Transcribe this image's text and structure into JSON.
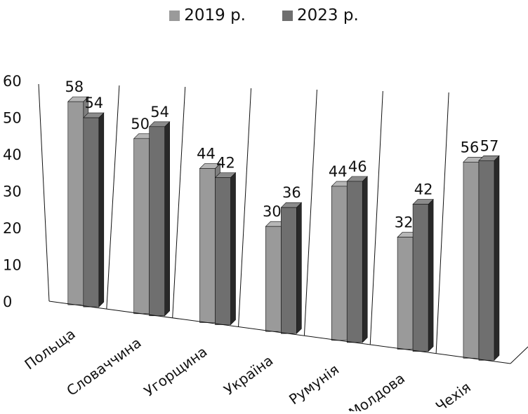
{
  "chart_data": {
    "type": "bar",
    "title": "",
    "subtitle": "",
    "xlabel": "",
    "ylabel": "",
    "categories": [
      "Польща",
      "Словаччина",
      "Угорщина",
      "Україна",
      "Румунія",
      "Молдова",
      "Чехія"
    ],
    "series": [
      {
        "name": "2019 р.",
        "values": [
          58,
          50,
          44,
          30,
          44,
          32,
          56
        ],
        "color": "#9a9a9a"
      },
      {
        "name": "2023 р.",
        "values": [
          54,
          54,
          42,
          36,
          46,
          42,
          57
        ],
        "color": "#6f6f6f"
      }
    ],
    "ylim": [
      0,
      60
    ],
    "yticks": [
      "0",
      "10",
      "20",
      "30",
      "40",
      "50",
      "60"
    ],
    "grid": false,
    "legend": "top-center",
    "chart_style": "3d-perspective-clustered-column"
  }
}
